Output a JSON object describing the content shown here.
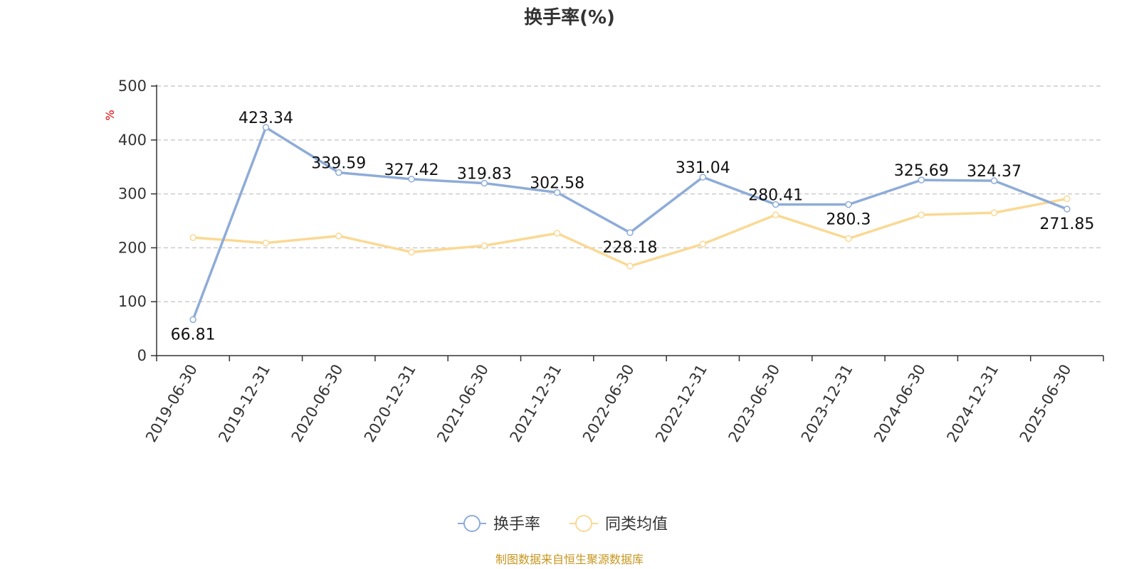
{
  "source_text": "制图数据来自恒生聚源数据库",
  "chart_data": {
    "type": "line",
    "title": "换手率(%)",
    "ylabel": "%",
    "xlabel": "",
    "ylim": [
      0,
      500
    ],
    "yticks": [
      0,
      100,
      200,
      300,
      400,
      500
    ],
    "grid": true,
    "legend_position": "bottom",
    "categories": [
      "2019-06-30",
      "2019-12-31",
      "2020-06-30",
      "2020-12-31",
      "2021-06-30",
      "2021-12-31",
      "2022-06-30",
      "2022-12-31",
      "2023-06-30",
      "2023-12-31",
      "2024-06-30",
      "2024-12-31",
      "2025-06-30"
    ],
    "series": [
      {
        "name": "换手率",
        "color": "#8eacd8",
        "values": [
          66.81,
          423.34,
          339.59,
          327.42,
          319.83,
          302.58,
          228.18,
          331.04,
          280.41,
          280.3,
          325.69,
          324.37,
          271.85
        ],
        "labels": [
          "66.81",
          "423.34",
          "339.59",
          "327.42",
          "319.83",
          "302.58",
          "228.18",
          "331.04",
          "280.41",
          "280.3",
          "325.69",
          "324.37",
          "271.85"
        ],
        "show_labels": true
      },
      {
        "name": "同类均值",
        "color": "#fad994",
        "values": [
          219,
          209,
          222,
          192,
          204,
          227,
          166,
          207,
          261,
          217,
          261,
          265,
          291
        ],
        "show_labels": false
      }
    ]
  }
}
